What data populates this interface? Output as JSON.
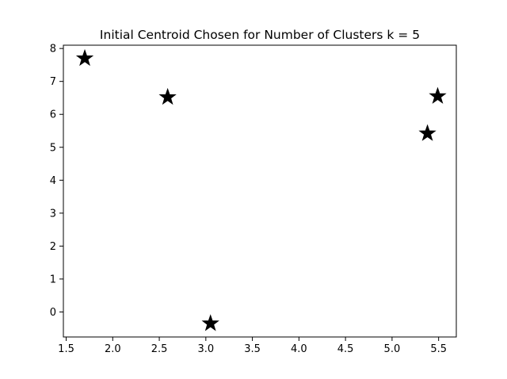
{
  "chart_data": {
    "type": "scatter",
    "title": "Initial Centroid Chosen for Number of Clusters k = 5",
    "xlabel": "",
    "ylabel": "",
    "xlim": [
      1.47,
      5.69
    ],
    "ylim": [
      -0.76,
      8.1
    ],
    "xticks": [
      1.5,
      2.0,
      2.5,
      3.0,
      3.5,
      4.0,
      4.5,
      5.0,
      5.5
    ],
    "xtick_labels": [
      "1.5",
      "2.0",
      "2.5",
      "3.0",
      "3.5",
      "4.0",
      "4.5",
      "5.0",
      "5.5"
    ],
    "yticks": [
      0,
      1,
      2,
      3,
      4,
      5,
      6,
      7,
      8
    ],
    "ytick_labels": [
      "0",
      "1",
      "2",
      "3",
      "4",
      "5",
      "6",
      "7",
      "8"
    ],
    "grid": false,
    "legend": "none",
    "marker": "star",
    "marker_color": "#000000",
    "points": [
      {
        "x": 1.7,
        "y": 7.7
      },
      {
        "x": 2.59,
        "y": 6.52
      },
      {
        "x": 3.05,
        "y": -0.35
      },
      {
        "x": 5.38,
        "y": 5.42
      },
      {
        "x": 5.49,
        "y": 6.55
      }
    ]
  }
}
